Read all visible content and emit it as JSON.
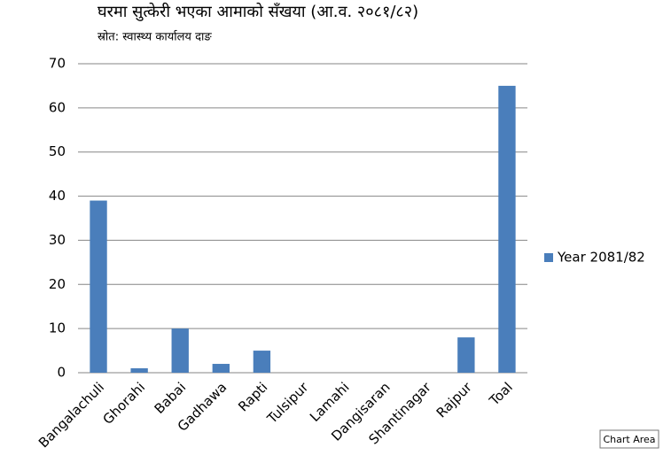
{
  "chart_data": {
    "type": "bar",
    "title": "घरमा सुत्केरी भएका आमाको सँखया (आ.व. २०८१/८२)",
    "subtitle": "स्रोत: स्वास्थ्य कार्यालय दाङ",
    "categories": [
      "Bangalachuli",
      "Ghorahi",
      "Babai",
      "Gadhawa",
      "Rapti",
      "Tulsipur",
      "Lamahi",
      "Dangisaran",
      "Shantinagar",
      "Rajpur",
      "Toal"
    ],
    "series": [
      {
        "name": "Year 2081/82",
        "color": "#4a7ebb",
        "values": [
          39,
          1,
          10,
          2,
          5,
          0,
          0,
          0,
          0,
          8,
          65
        ]
      }
    ],
    "ylim": [
      0,
      70
    ],
    "yticks": [
      0,
      10,
      20,
      30,
      40,
      50,
      60,
      70
    ],
    "grid": true,
    "legend": "right"
  },
  "tooltip": "Chart Area"
}
